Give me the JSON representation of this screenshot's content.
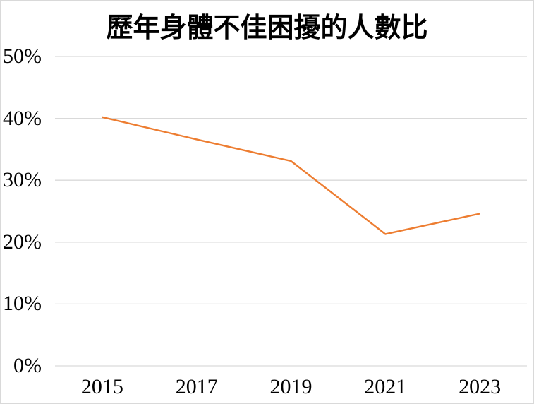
{
  "chart_data": {
    "type": "line",
    "title": "歷年身體不佳困擾的人數比",
    "categories": [
      "2015",
      "2017",
      "2019",
      "2021",
      "2023"
    ],
    "values": [
      40.2,
      36.6,
      33.1,
      21.3,
      24.6
    ],
    "xlabel": "",
    "ylabel": "",
    "ylim": [
      0,
      50
    ],
    "yticks": [
      0,
      10,
      20,
      30,
      40,
      50
    ],
    "ytick_labels": [
      "0%",
      "10%",
      "20%",
      "30%",
      "40%",
      "50%"
    ],
    "grid": true,
    "legend": false,
    "markers": false,
    "line_color": "#ED7D31",
    "gridline_color": "#D9D9D9",
    "text_color": "#000000",
    "background_color": "#FFFFFF",
    "border_color": "#D9D9D9"
  }
}
